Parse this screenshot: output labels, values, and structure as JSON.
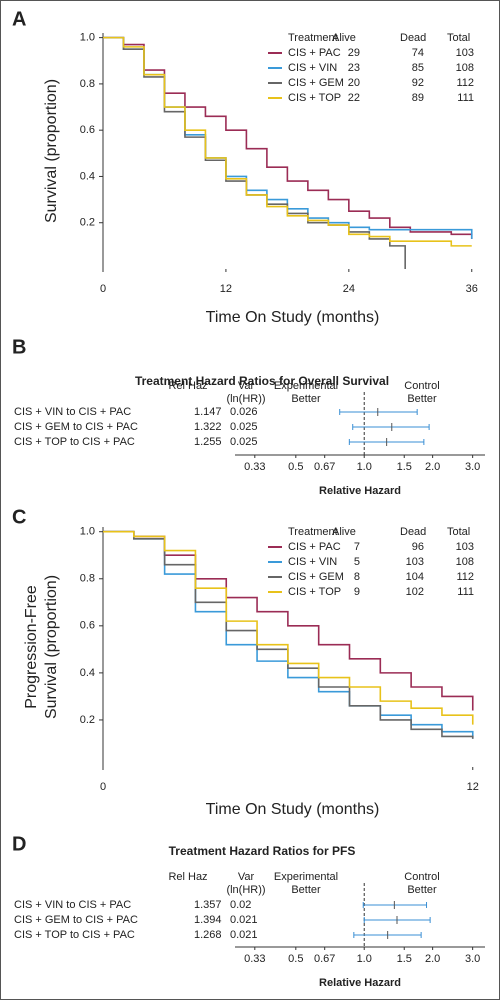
{
  "chart_data": [
    {
      "type": "km",
      "panel": "A",
      "ylabel": [
        "Survival (proportion)"
      ],
      "xlabel": "Time On Study (months)",
      "xlim": [
        0,
        37
      ],
      "ylim": [
        0,
        1.02
      ],
      "xticks": [
        0,
        12,
        24,
        36
      ],
      "yticks": [
        0.2,
        0.4,
        0.6,
        0.8,
        {
          "value": 1,
          "label": "1.0"
        }
      ],
      "legend_headers": [
        "Treatment",
        "Alive",
        "Dead",
        "Total"
      ],
      "series": [
        {
          "name": "CIS + PAC",
          "color": "#9b2c55",
          "alive": 29,
          "dead": 74,
          "total": 103,
          "x": [
            0,
            2,
            4,
            6,
            8,
            10,
            12,
            14,
            16,
            18,
            20,
            22,
            24,
            26,
            28,
            30,
            32,
            34,
            36
          ],
          "values": [
            1.0,
            0.97,
            0.86,
            0.76,
            0.7,
            0.66,
            0.6,
            0.52,
            0.44,
            0.38,
            0.34,
            0.3,
            0.25,
            0.22,
            0.18,
            0.16,
            0.16,
            0.15,
            0.13
          ]
        },
        {
          "name": "CIS + VIN",
          "color": "#3a9ad9",
          "alive": 23,
          "dead": 85,
          "total": 108,
          "x": [
            0,
            2,
            4,
            6,
            8,
            10,
            12,
            14,
            16,
            18,
            20,
            22,
            24,
            26,
            28,
            30,
            32,
            34,
            36
          ],
          "values": [
            1.0,
            0.95,
            0.84,
            0.7,
            0.58,
            0.48,
            0.4,
            0.34,
            0.3,
            0.26,
            0.22,
            0.2,
            0.18,
            0.17,
            0.17,
            0.17,
            0.17,
            0.17,
            0.13
          ]
        },
        {
          "name": "CIS + GEM",
          "color": "#666666",
          "alive": 20,
          "dead": 92,
          "total": 112,
          "x": [
            0,
            2,
            4,
            6,
            8,
            10,
            12,
            14,
            16,
            18,
            20,
            22,
            24,
            26,
            28,
            29.5
          ],
          "values": [
            1.0,
            0.95,
            0.83,
            0.68,
            0.57,
            0.47,
            0.38,
            0.32,
            0.28,
            0.24,
            0.2,
            0.19,
            0.16,
            0.13,
            0.1,
            0.0
          ]
        },
        {
          "name": "CIS + TOP",
          "color": "#e8c21a",
          "alive": 22,
          "dead": 89,
          "total": 111,
          "x": [
            0,
            2,
            4,
            6,
            8,
            10,
            12,
            14,
            16,
            18,
            20,
            22,
            24,
            26,
            28,
            30,
            32,
            34,
            36
          ],
          "values": [
            1.0,
            0.96,
            0.84,
            0.7,
            0.6,
            0.48,
            0.39,
            0.32,
            0.27,
            0.23,
            0.21,
            0.19,
            0.15,
            0.14,
            0.12,
            0.12,
            0.12,
            0.1,
            0.1
          ]
        }
      ]
    },
    {
      "type": "forest",
      "panel": "B",
      "title": "Treatment Hazard Ratios for Overall Survival",
      "columns": [
        "Rel Haz",
        "Var",
        "(ln(HR))",
        "Experimental",
        "Better",
        "Control",
        "Better"
      ],
      "xlabel": "Relative Hazard",
      "log_x": true,
      "xlim": [
        0.27,
        3.4
      ],
      "reference_line": 1,
      "color": "#3a8fd4",
      "xticks": [
        0.33,
        0.5,
        0.67,
        {
          "value": 1,
          "label": "1.0"
        },
        1.5,
        {
          "value": 2,
          "label": "2.0"
        },
        {
          "value": 3,
          "label": "3.0"
        }
      ],
      "categories": [
        "CIS + VIN to CIS + PAC",
        "CIS + GEM to CIS + PAC",
        "CIS + TOP to CIS + PAC"
      ],
      "values": [
        1.147,
        1.322,
        1.255
      ],
      "variance": [
        0.026,
        0.025,
        0.025
      ],
      "ci_low": [
        0.78,
        0.89,
        0.86
      ],
      "ci_high": [
        1.71,
        1.93,
        1.83
      ]
    },
    {
      "type": "km",
      "panel": "C",
      "ylabel": [
        "Progression-Free",
        "Survival (proportion)"
      ],
      "xlabel": "Time On Study (months)",
      "xlim": [
        0,
        12.3
      ],
      "ylim": [
        0,
        1.02
      ],
      "xticks": [
        0,
        12
      ],
      "yticks": [
        0.2,
        0.4,
        0.6,
        0.8,
        {
          "value": 1,
          "label": "1.0"
        }
      ],
      "legend_headers": [
        "Treatment",
        "Alive",
        "Dead",
        "Total"
      ],
      "series": [
        {
          "name": "CIS + PAC",
          "color": "#9b2c55",
          "alive": 7,
          "dead": 96,
          "total": 103,
          "x": [
            0,
            1,
            2,
            3,
            4,
            5,
            6,
            7,
            8,
            9,
            10,
            11,
            12
          ],
          "values": [
            1.0,
            0.98,
            0.9,
            0.8,
            0.72,
            0.66,
            0.6,
            0.52,
            0.46,
            0.4,
            0.34,
            0.3,
            0.24
          ]
        },
        {
          "name": "CIS + VIN",
          "color": "#3a9ad9",
          "alive": 5,
          "dead": 103,
          "total": 108,
          "x": [
            0,
            1,
            2,
            3,
            4,
            5,
            6,
            7,
            8,
            9,
            10,
            11,
            12
          ],
          "values": [
            1.0,
            0.97,
            0.82,
            0.66,
            0.52,
            0.45,
            0.38,
            0.32,
            0.26,
            0.22,
            0.18,
            0.15,
            0.12
          ]
        },
        {
          "name": "CIS + GEM",
          "color": "#666666",
          "alive": 8,
          "dead": 104,
          "total": 112,
          "x": [
            0,
            1,
            2,
            3,
            4,
            5,
            6,
            7,
            8,
            9,
            10,
            11,
            12
          ],
          "values": [
            1.0,
            0.97,
            0.86,
            0.7,
            0.58,
            0.5,
            0.42,
            0.34,
            0.26,
            0.2,
            0.16,
            0.13,
            0.12
          ]
        },
        {
          "name": "CIS + TOP",
          "color": "#e8c21a",
          "alive": 9,
          "dead": 102,
          "total": 111,
          "x": [
            0,
            1,
            2,
            3,
            4,
            5,
            6,
            7,
            8,
            9,
            10,
            11,
            12
          ],
          "values": [
            1.0,
            0.98,
            0.92,
            0.76,
            0.62,
            0.52,
            0.44,
            0.38,
            0.34,
            0.28,
            0.25,
            0.22,
            0.18
          ]
        }
      ]
    },
    {
      "type": "forest",
      "panel": "D",
      "title": "Treatment Hazard Ratios for PFS",
      "columns": [
        "Rel Haz",
        "Var",
        "(ln(HR))",
        "Experimental",
        "Better",
        "Control",
        "Better"
      ],
      "xlabel": "Relative Hazard",
      "log_x": true,
      "xlim": [
        0.27,
        3.4
      ],
      "reference_line": 1,
      "color": "#3a8fd4",
      "xticks": [
        0.33,
        0.5,
        0.67,
        {
          "value": 1,
          "label": "1.0"
        },
        1.5,
        {
          "value": 2,
          "label": "2.0"
        },
        {
          "value": 3,
          "label": "3.0"
        }
      ],
      "categories": [
        "CIS + VIN to CIS + PAC",
        "CIS + GEM to CIS + PAC",
        "CIS + TOP to CIS + PAC"
      ],
      "values": [
        1.357,
        1.394,
        1.268
      ],
      "variance": [
        0.02,
        0.021,
        0.021
      ],
      "ci_low": [
        0.99,
        1.0,
        0.9
      ],
      "ci_high": [
        1.88,
        1.95,
        1.78
      ]
    }
  ]
}
